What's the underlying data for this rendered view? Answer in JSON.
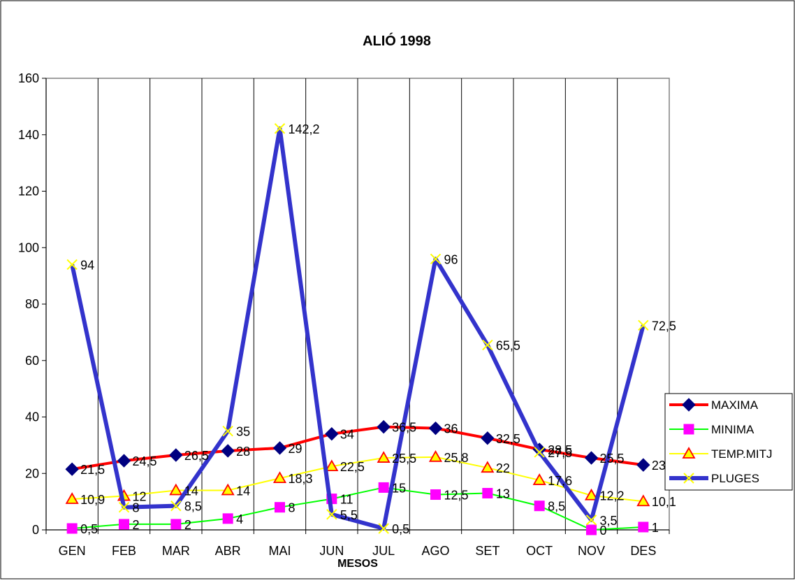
{
  "chart_data": {
    "type": "line",
    "title": "ALIÓ 1998",
    "xlabel": "MESOS",
    "ylabel": "",
    "categories": [
      "GEN",
      "FEB",
      "MAR",
      "ABR",
      "MAI",
      "JUN",
      "JUL",
      "AGO",
      "SET",
      "OCT",
      "NOV",
      "DES"
    ],
    "ylim": [
      0,
      160
    ],
    "yticks": [
      "0",
      "20",
      "40",
      "60",
      "80",
      "100",
      "120",
      "140",
      "160"
    ],
    "grid": "vertical",
    "legend_position": "right",
    "series": [
      {
        "name": "MAXIMA",
        "values": [
          21.5,
          24.5,
          26.5,
          28,
          29,
          34,
          36.5,
          36,
          32.5,
          28.5,
          25.5,
          23
        ],
        "labels": [
          "21,5",
          "24,5",
          "26,5",
          "28",
          "29",
          "34",
          "36,5",
          "36",
          "32,5",
          "28,5",
          "25,5",
          "23"
        ],
        "color": "#ff0000",
        "marker": "diamond",
        "marker_color": "#000080"
      },
      {
        "name": "MINIMA",
        "values": [
          0.5,
          2,
          2,
          4,
          8,
          11,
          15,
          12.5,
          13,
          8.5,
          0,
          1
        ],
        "labels": [
          "0,5",
          "2",
          "2",
          "4",
          "8",
          "11",
          "15",
          "12,5",
          "13",
          "8,5",
          "0",
          "1"
        ],
        "color": "#00ff00",
        "marker": "square",
        "marker_color": "#ff00ff"
      },
      {
        "name": "TEMP.MITJ",
        "values": [
          10.9,
          12,
          14,
          14,
          18.3,
          22.5,
          25.5,
          25.8,
          22,
          17.6,
          12.2,
          10.1
        ],
        "labels": [
          "10,9",
          "12",
          "14",
          "14",
          "18,3",
          "22,5",
          "25,5",
          "25,8",
          "22",
          "17,6",
          "12,2",
          "10,1"
        ],
        "color": "#ffff00",
        "marker": "triangle",
        "marker_color": "#ff0000"
      },
      {
        "name": "PLUGES",
        "values": [
          94,
          8,
          8.5,
          35,
          142.2,
          5.5,
          0.5,
          96,
          65.5,
          27.5,
          3.5,
          72.5
        ],
        "labels": [
          "94",
          "8",
          "8,5",
          "35",
          "142,2",
          "5,5",
          "0,5",
          "96",
          "65,5",
          "27,5",
          "3,5",
          "72,5"
        ],
        "color": "#3333cc",
        "marker": "x",
        "marker_color": "#ffff00"
      }
    ]
  }
}
